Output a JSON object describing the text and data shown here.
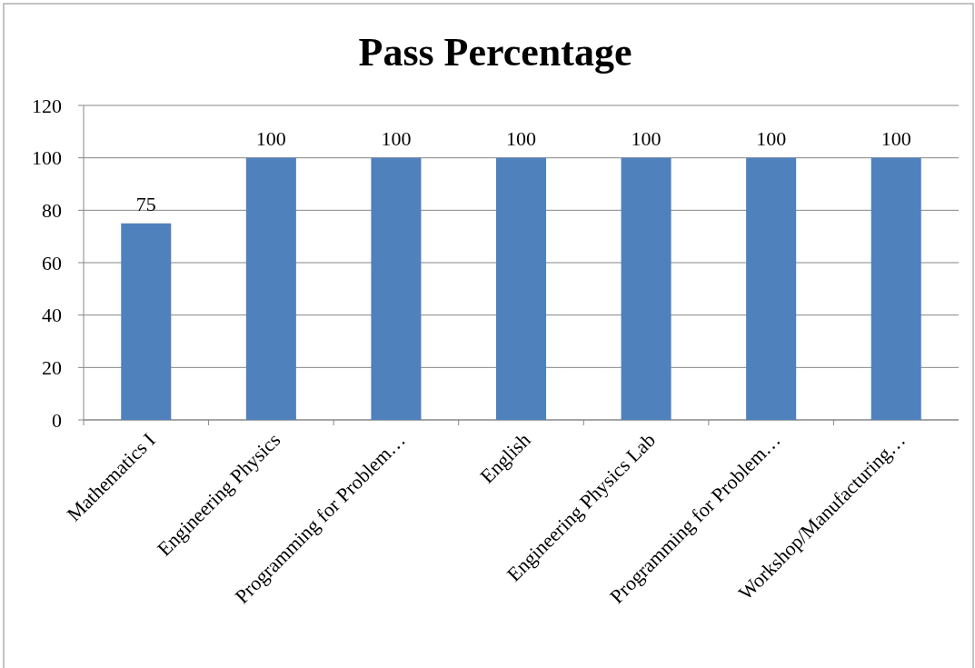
{
  "chart_data": {
    "type": "bar",
    "title": "Pass Percentage",
    "categories": [
      "Mathematics I",
      "Engineering Physics",
      "Programming for Problem…",
      "English",
      "Engineering Physics Lab",
      "Programming for Problem…",
      "Workshop/Manufacturing…"
    ],
    "values": [
      75,
      100,
      100,
      100,
      100,
      100,
      100
    ],
    "color": "#4f81bd",
    "ylim": [
      0,
      120
    ],
    "yticks": [
      0,
      20,
      40,
      60,
      80,
      100,
      120
    ],
    "grid": "y",
    "data_labels": true
  }
}
